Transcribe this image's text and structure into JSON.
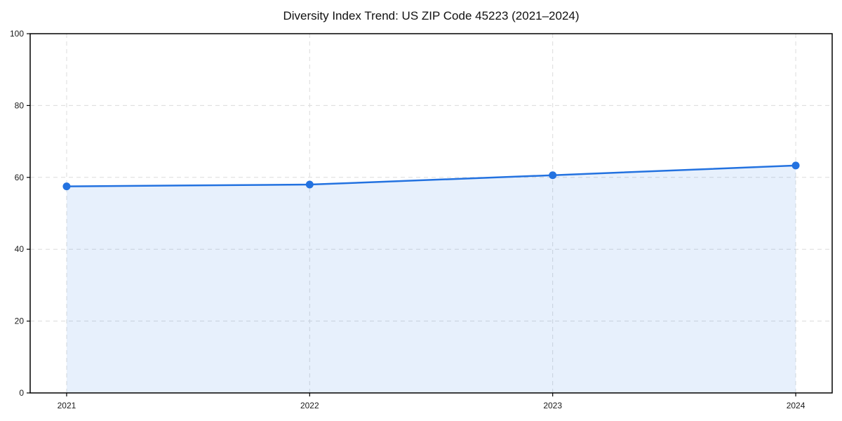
{
  "chart_data": {
    "type": "line",
    "title": "Diversity Index Trend: US ZIP Code 45223 (2021–2024)",
    "xlabel": "",
    "ylabel": "",
    "x": [
      2021,
      2022,
      2023,
      2024
    ],
    "series": [
      {
        "name": "Diversity Index",
        "values": [
          57.5,
          58.0,
          60.6,
          63.3
        ]
      }
    ],
    "ylim": [
      0,
      100
    ],
    "yticks": [
      0,
      20,
      40,
      60,
      80,
      100
    ],
    "xticklabels": [
      "2021",
      "2022",
      "2023",
      "2024"
    ],
    "grid": true,
    "grid_style": "dashed",
    "legend": "none",
    "colors": {
      "line": "#2372e0",
      "marker": "#2372e0",
      "area_fill": "rgba(35,114,224,0.11)",
      "gridline": "#dcdcdc",
      "spine": "#000000",
      "tick_label": "#1a1a1a",
      "background": "#ffffff"
    }
  }
}
